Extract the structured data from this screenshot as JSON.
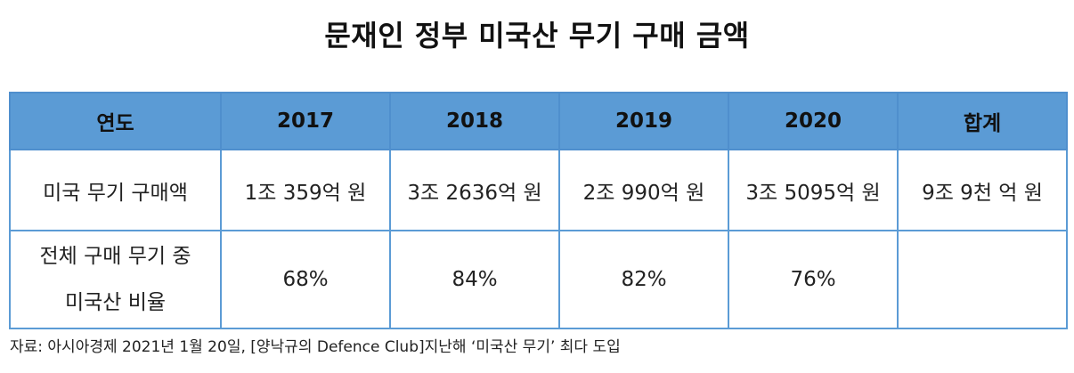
{
  "title": "문재인 정부 미국산 무기 구매 금액",
  "table": {
    "header": [
      "연도",
      "2017",
      "2018",
      "2019",
      "2020",
      "합계"
    ],
    "rows": [
      {
        "label_lines": [
          "미국 무기 구매액"
        ],
        "cells": [
          "1조 359억 원",
          "3조 2636억 원",
          "2조 990억 원",
          "3조 5095억 원",
          "9조 9천 억 원"
        ]
      },
      {
        "label_lines": [
          "전체 구매 무기 중",
          "미국산 비율"
        ],
        "cells": [
          "68%",
          "84%",
          "82%",
          "76%",
          ""
        ]
      }
    ]
  },
  "source": "자료: 아시아경제 2021년 1월 20일, [양낙규의 Defence Club]지난해 ‘미국산 무기’ 최다 도입",
  "colors": {
    "header_bg": "#5b9bd5",
    "grid": "#5b9bd5",
    "text": "#111111"
  }
}
